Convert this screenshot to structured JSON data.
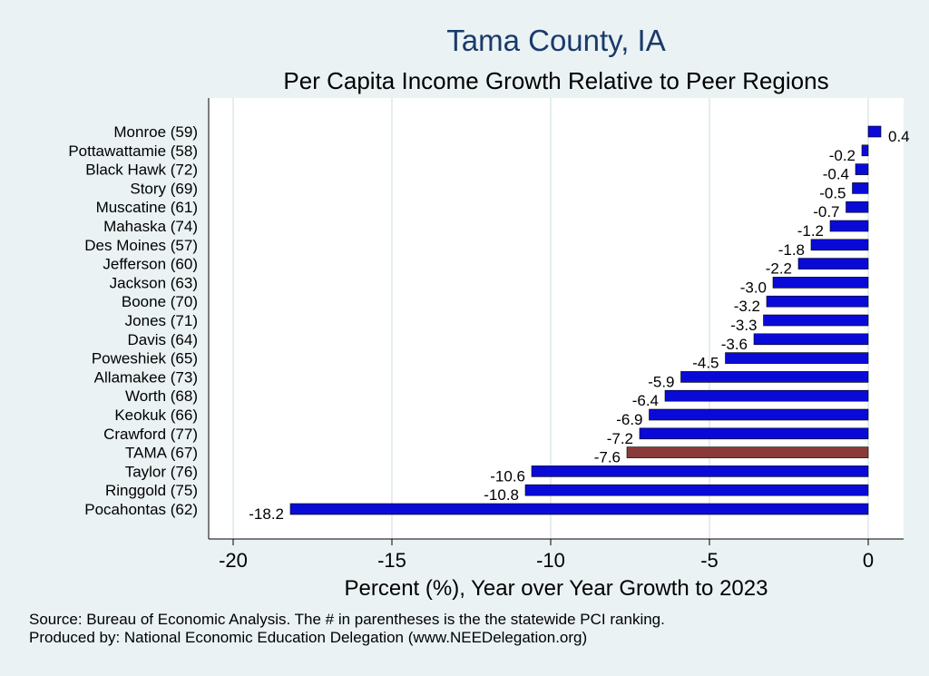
{
  "chart_data": {
    "type": "bar",
    "orientation": "horizontal",
    "title": "Tama County, IA",
    "subtitle": "Per Capita Income Growth Relative to Peer Regions",
    "xlabel": "Percent (%), Year over Year Growth to 2023",
    "ylabel": "",
    "xlim": [
      -20,
      2
    ],
    "xticks": [
      -20,
      -15,
      -10,
      -5,
      0
    ],
    "grid": true,
    "categories": [
      "Monroe (59)",
      "Pottawattamie (58)",
      "Black Hawk (72)",
      "Story (69)",
      "Muscatine (61)",
      "Mahaska (74)",
      "Des Moines (57)",
      "Jefferson (60)",
      "Jackson (63)",
      "Boone (70)",
      "Jones (71)",
      "Davis (64)",
      "Poweshiek (65)",
      "Allamakee (73)",
      "Worth (68)",
      "Keokuk (66)",
      "Crawford (77)",
      "TAMA (67)",
      "Taylor (76)",
      "Ringgold (75)",
      "Pocahontas (62)"
    ],
    "values": [
      0.4,
      -0.2,
      -0.4,
      -0.5,
      -0.7,
      -1.2,
      -1.8,
      -2.2,
      -3.0,
      -3.2,
      -3.3,
      -3.6,
      -4.5,
      -5.9,
      -6.4,
      -6.9,
      -7.2,
      -7.6,
      -10.6,
      -10.8,
      -18.2
    ],
    "value_labels": [
      "0.4",
      "-0.2",
      "-0.4",
      "-0.5",
      "-0.7",
      "-1.2",
      "-1.8",
      "-2.2",
      "-3.0",
      "-3.2",
      "-3.3",
      "-3.6",
      "-4.5",
      "-5.9",
      "-6.4",
      "-6.9",
      "-7.2",
      "-7.6",
      "-10.6",
      "-10.8",
      "-18.2"
    ],
    "highlight_index": 17,
    "colors": {
      "bar": "#0a0ad8",
      "highlight": "#8b3a3a",
      "background": "#eaf2f3",
      "plot": "#ffffff",
      "grid": "#dbe8ea",
      "title": "#1a3a6b"
    }
  },
  "footer": {
    "source": "Source: Bureau of Economic Analysis. The # in parentheses is the the statewide PCI ranking.",
    "produced": "Produced by: National Economic Education Delegation (www.NEEDelegation.org)"
  }
}
